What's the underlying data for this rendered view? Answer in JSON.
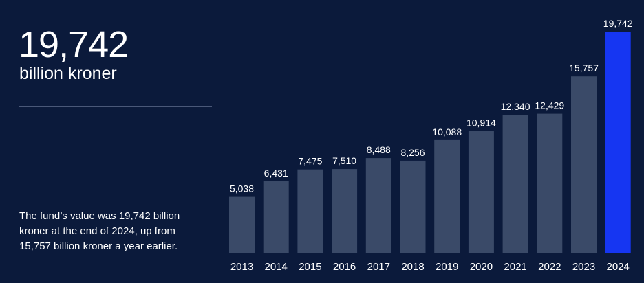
{
  "headline": {
    "value": "19,742",
    "unit": "billion kroner"
  },
  "description": "The fund’s value was 19,742 billion kroner at the end of 2024, up from 15,757 billion kroner a year earlier.",
  "colors": {
    "background": "#0b1a3b",
    "bar": "#3a4a68",
    "highlight_bar": "#1636f2",
    "text": "#ffffff"
  },
  "chart_data": {
    "type": "bar",
    "categories": [
      "2013",
      "2014",
      "2015",
      "2016",
      "2017",
      "2018",
      "2019",
      "2020",
      "2021",
      "2022",
      "2023",
      "2024"
    ],
    "values": [
      5038,
      6431,
      7475,
      7510,
      8488,
      8256,
      10088,
      10914,
      12340,
      12429,
      15757,
      19742
    ],
    "value_labels": [
      "5,038",
      "6,431",
      "7,475",
      "7,510",
      "8,488",
      "8,256",
      "10,088",
      "10,914",
      "12,340",
      "12,429",
      "15,757",
      "19,742"
    ],
    "highlight_category": "2024",
    "title": "",
    "xlabel": "",
    "ylabel": "",
    "ylim": [
      0,
      19742
    ],
    "grid": false
  }
}
